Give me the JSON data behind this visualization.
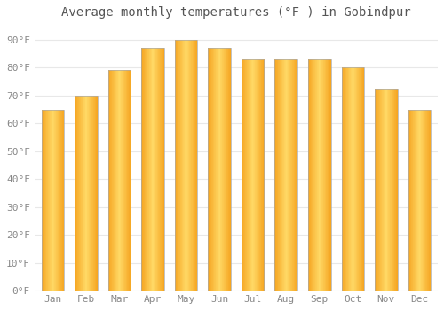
{
  "title": "Average monthly temperatures (°F ) in Gobindpur",
  "months": [
    "Jan",
    "Feb",
    "Mar",
    "Apr",
    "May",
    "Jun",
    "Jul",
    "Aug",
    "Sep",
    "Oct",
    "Nov",
    "Dec"
  ],
  "values": [
    65,
    70,
    79,
    87,
    90,
    87,
    83,
    83,
    83,
    80,
    72,
    65
  ],
  "ylim": [
    0,
    95
  ],
  "yticks": [
    0,
    10,
    20,
    30,
    40,
    50,
    60,
    70,
    80,
    90
  ],
  "ytick_labels": [
    "0°F",
    "10°F",
    "20°F",
    "30°F",
    "40°F",
    "50°F",
    "60°F",
    "70°F",
    "80°F",
    "90°F"
  ],
  "bg_color": "#ffffff",
  "grid_color": "#e8e8e8",
  "bar_color_dark": "#F5A623",
  "bar_color_light": "#FFD966",
  "bar_edge_color": "#aaaaaa",
  "title_fontsize": 10,
  "tick_fontsize": 8,
  "font_family": "monospace",
  "title_color": "#555555",
  "tick_color": "#888888"
}
